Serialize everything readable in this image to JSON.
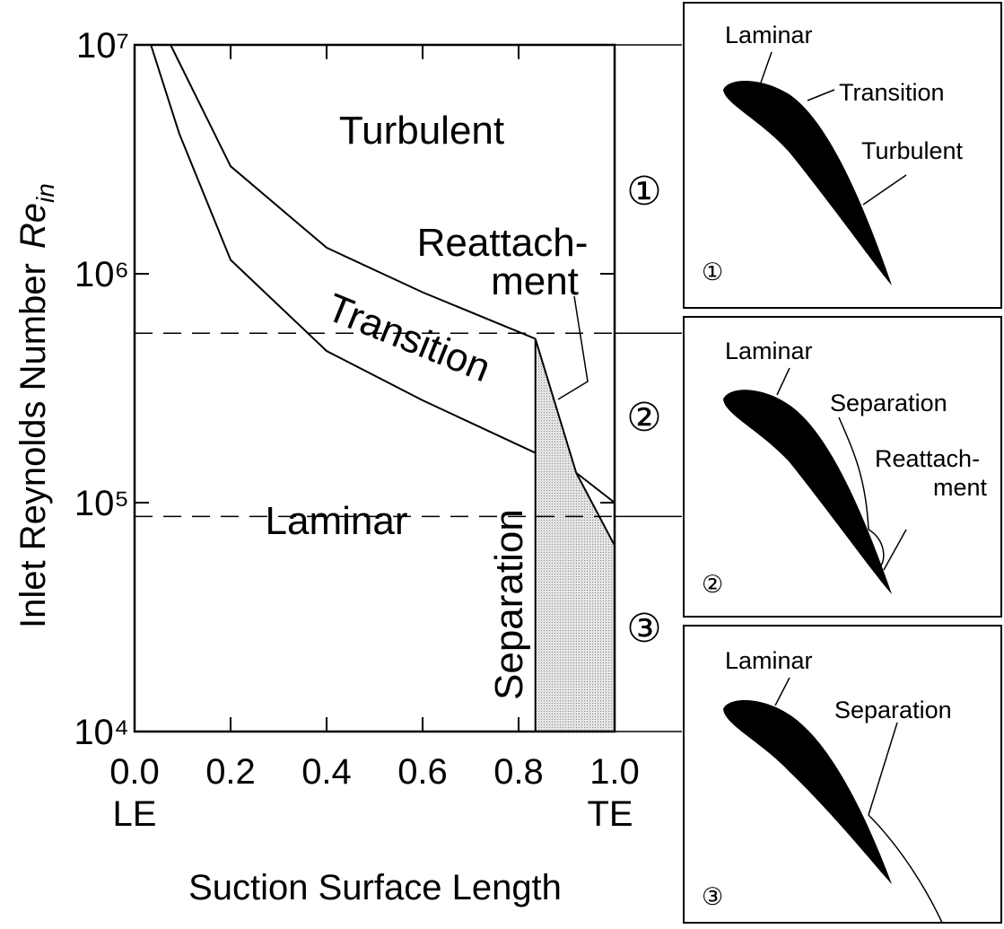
{
  "chart_data": {
    "type": "line",
    "x_label": "Suction Surface Length",
    "x_end_labels": [
      "LE",
      "TE"
    ],
    "y_label": "Inlet Reynolds Number",
    "y_label_symbol": "Re",
    "y_label_subscript": "in",
    "xlim": [
      0,
      1.0
    ],
    "ylim": [
      10000,
      10000000
    ],
    "log_y": true,
    "xticks": [
      {
        "value": 0,
        "label": "0.0"
      },
      0.2,
      0.4,
      0.6,
      0.8,
      {
        "value": 1,
        "label": "1.0"
      }
    ],
    "yticks": [
      {
        "value": 10000,
        "label": "10⁴"
      },
      {
        "value": 100000,
        "label": "10⁵"
      },
      {
        "value": 1000000,
        "label": "10⁶"
      },
      {
        "value": 10000000,
        "label": "10⁷"
      }
    ],
    "reference_lines": [
      550000,
      87000
    ],
    "series": [
      {
        "color": "#000000",
        "x": [
          0.034,
          0.093,
          0.2,
          0.4,
          0.6,
          0.835
        ],
        "values": [
          10000000,
          4100000,
          1150000,
          460000,
          280000,
          165000
        ]
      },
      {
        "color": "#000000",
        "x": [
          0.075,
          0.2,
          0.4,
          0.6,
          0.835
        ],
        "values": [
          10000000,
          2950000,
          1300000,
          830000,
          520000
        ]
      },
      {
        "color": "#000000",
        "x": [
          0.835,
          0.835
        ],
        "values": [
          10000,
          520000
        ]
      },
      {
        "color": "#000000",
        "fill": "#d4d4d4",
        "x": [
          0.835,
          0.92,
          1.0
        ],
        "values": [
          520000,
          135000,
          65000
        ]
      },
      {
        "color": "#000000",
        "x": [
          0.92,
          1.0
        ],
        "values": [
          135000,
          100000
        ]
      }
    ],
    "annotations": [
      "Turbulent",
      "Transition",
      "Laminar",
      "Separation",
      "Reattach-",
      "ment",
      "①",
      "②",
      "③"
    ]
  },
  "panels": [
    {
      "number": "①",
      "labels": [
        "Laminar",
        "Transition",
        "Turbulent"
      ]
    },
    {
      "number": "②",
      "labels": [
        "Laminar",
        "Separation",
        "Reattach-",
        "ment"
      ]
    },
    {
      "number": "③",
      "labels": [
        "Laminar",
        "Separation"
      ]
    }
  ]
}
